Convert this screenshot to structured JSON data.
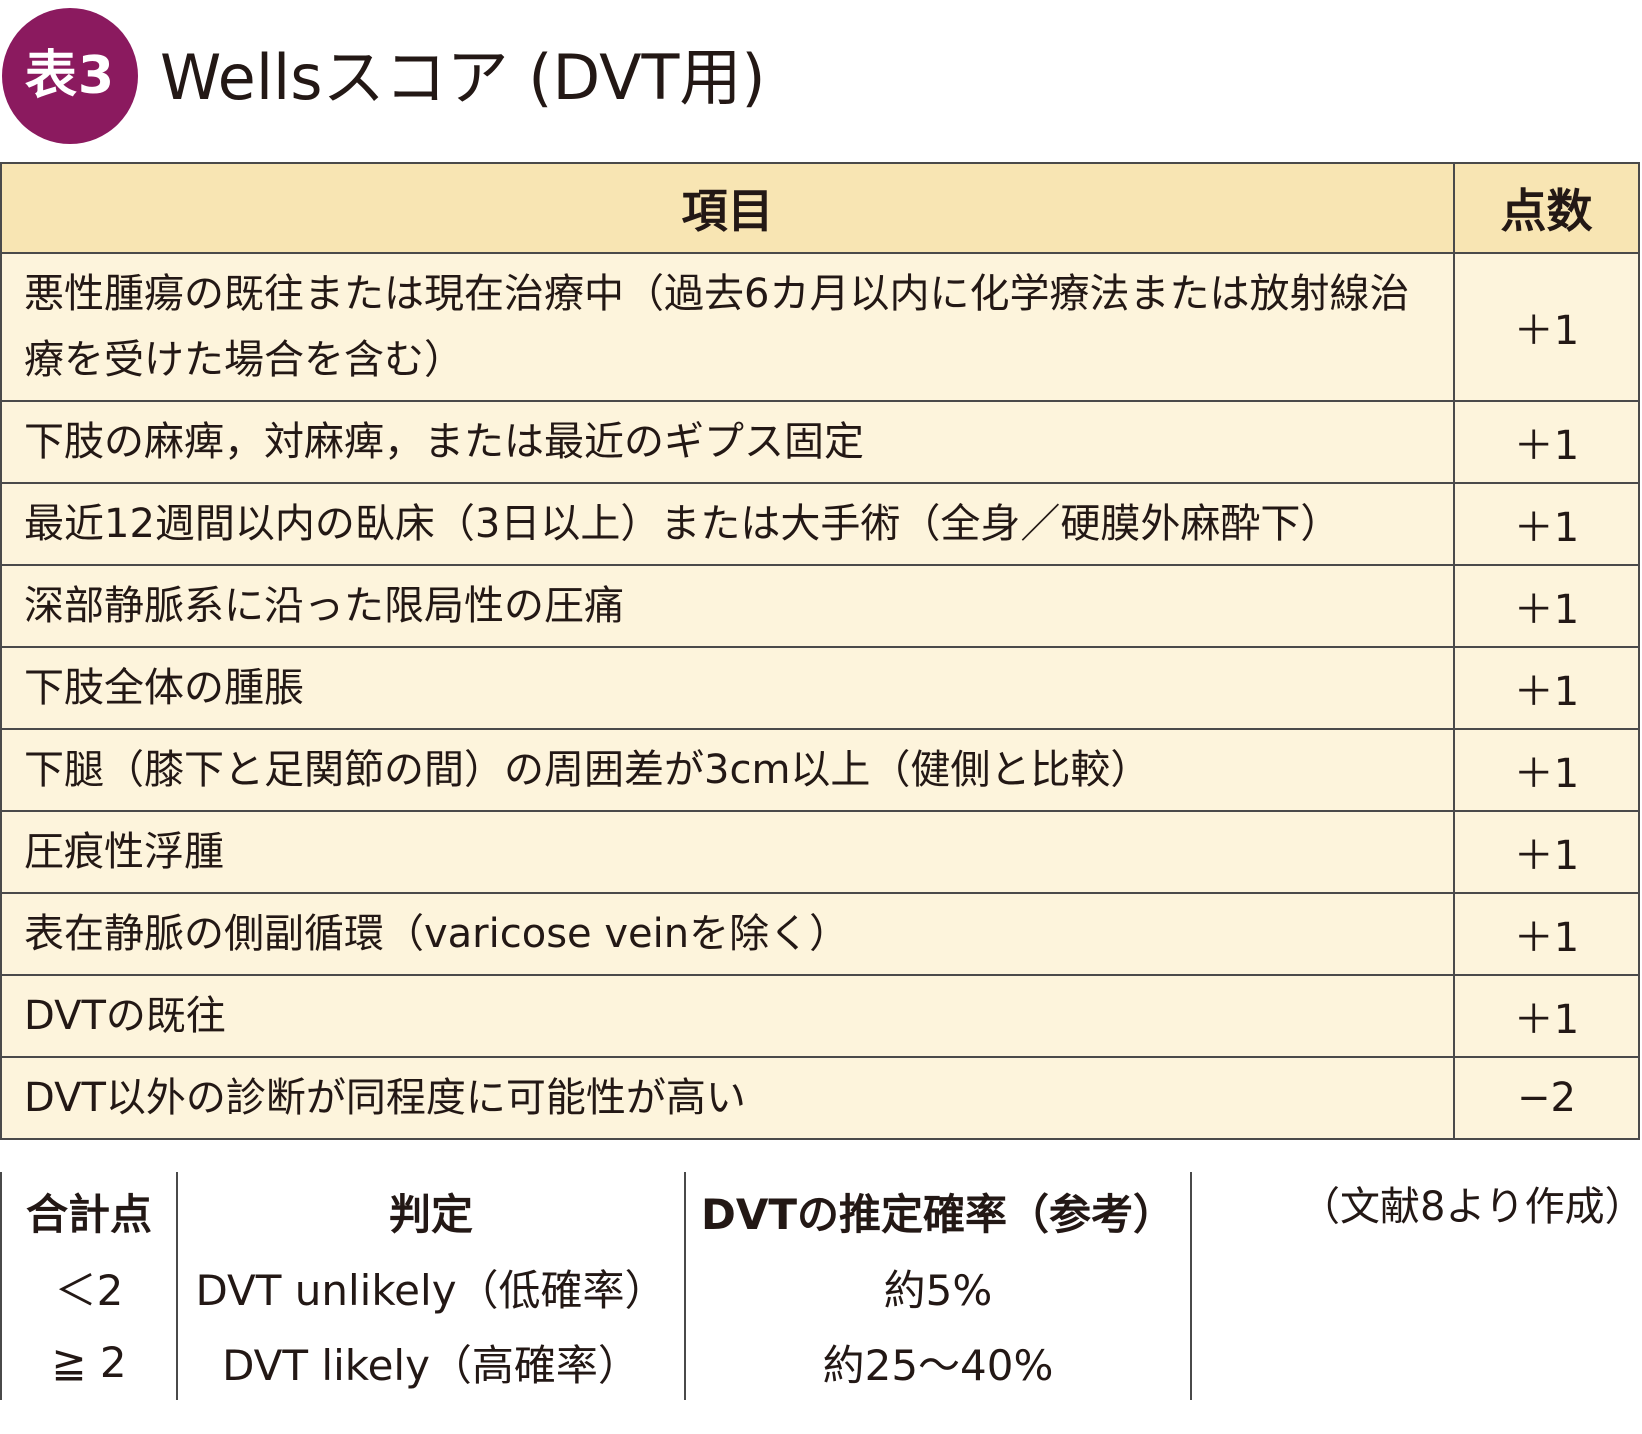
{
  "header": {
    "badge": "表3",
    "title": "Wellsスコア (DVT用)"
  },
  "score_table": {
    "col_item": "項目",
    "col_points": "点数",
    "rows": [
      {
        "item": "悪性腫瘍の既往または現在治療中（過去6カ月以内に化学療法または放射線治療を受けた場合を含む）",
        "points": "＋1"
      },
      {
        "item": "下肢の麻痺，対麻痺，または最近のギプス固定",
        "points": "＋1"
      },
      {
        "item": "最近12週間以内の臥床（3日以上）または大手術（全身／硬膜外麻酔下）",
        "points": "＋1"
      },
      {
        "item": "深部静脈系に沿った限局性の圧痛",
        "points": "＋1"
      },
      {
        "item": "下肢全体の腫脹",
        "points": "＋1"
      },
      {
        "item": "下腿（膝下と足関節の間）の周囲差が3cm以上（健側と比較）",
        "points": "＋1"
      },
      {
        "item": "圧痕性浮腫",
        "points": "＋1"
      },
      {
        "item": "表在静脈の側副循環（varicose veinを除く）",
        "points": "＋1"
      },
      {
        "item": "DVTの既往",
        "points": "＋1"
      },
      {
        "item": "DVT以外の診断が同程度に可能性が高い",
        "points": "−2"
      }
    ]
  },
  "judgement_table": {
    "headers": [
      "合計点",
      "判定",
      "DVTの推定確率（参考）"
    ],
    "rows": [
      [
        "＜2",
        "DVT unlikely（低確率）",
        "約5%"
      ],
      [
        "≧ 2",
        "DVT likely（高確率）",
        "約25〜40%"
      ]
    ]
  },
  "source": "（文献8より作成）",
  "colors": {
    "badge": "#8b1a5f",
    "header_fill": "#f8e5b3",
    "row_fill": "#fdf4dc"
  }
}
